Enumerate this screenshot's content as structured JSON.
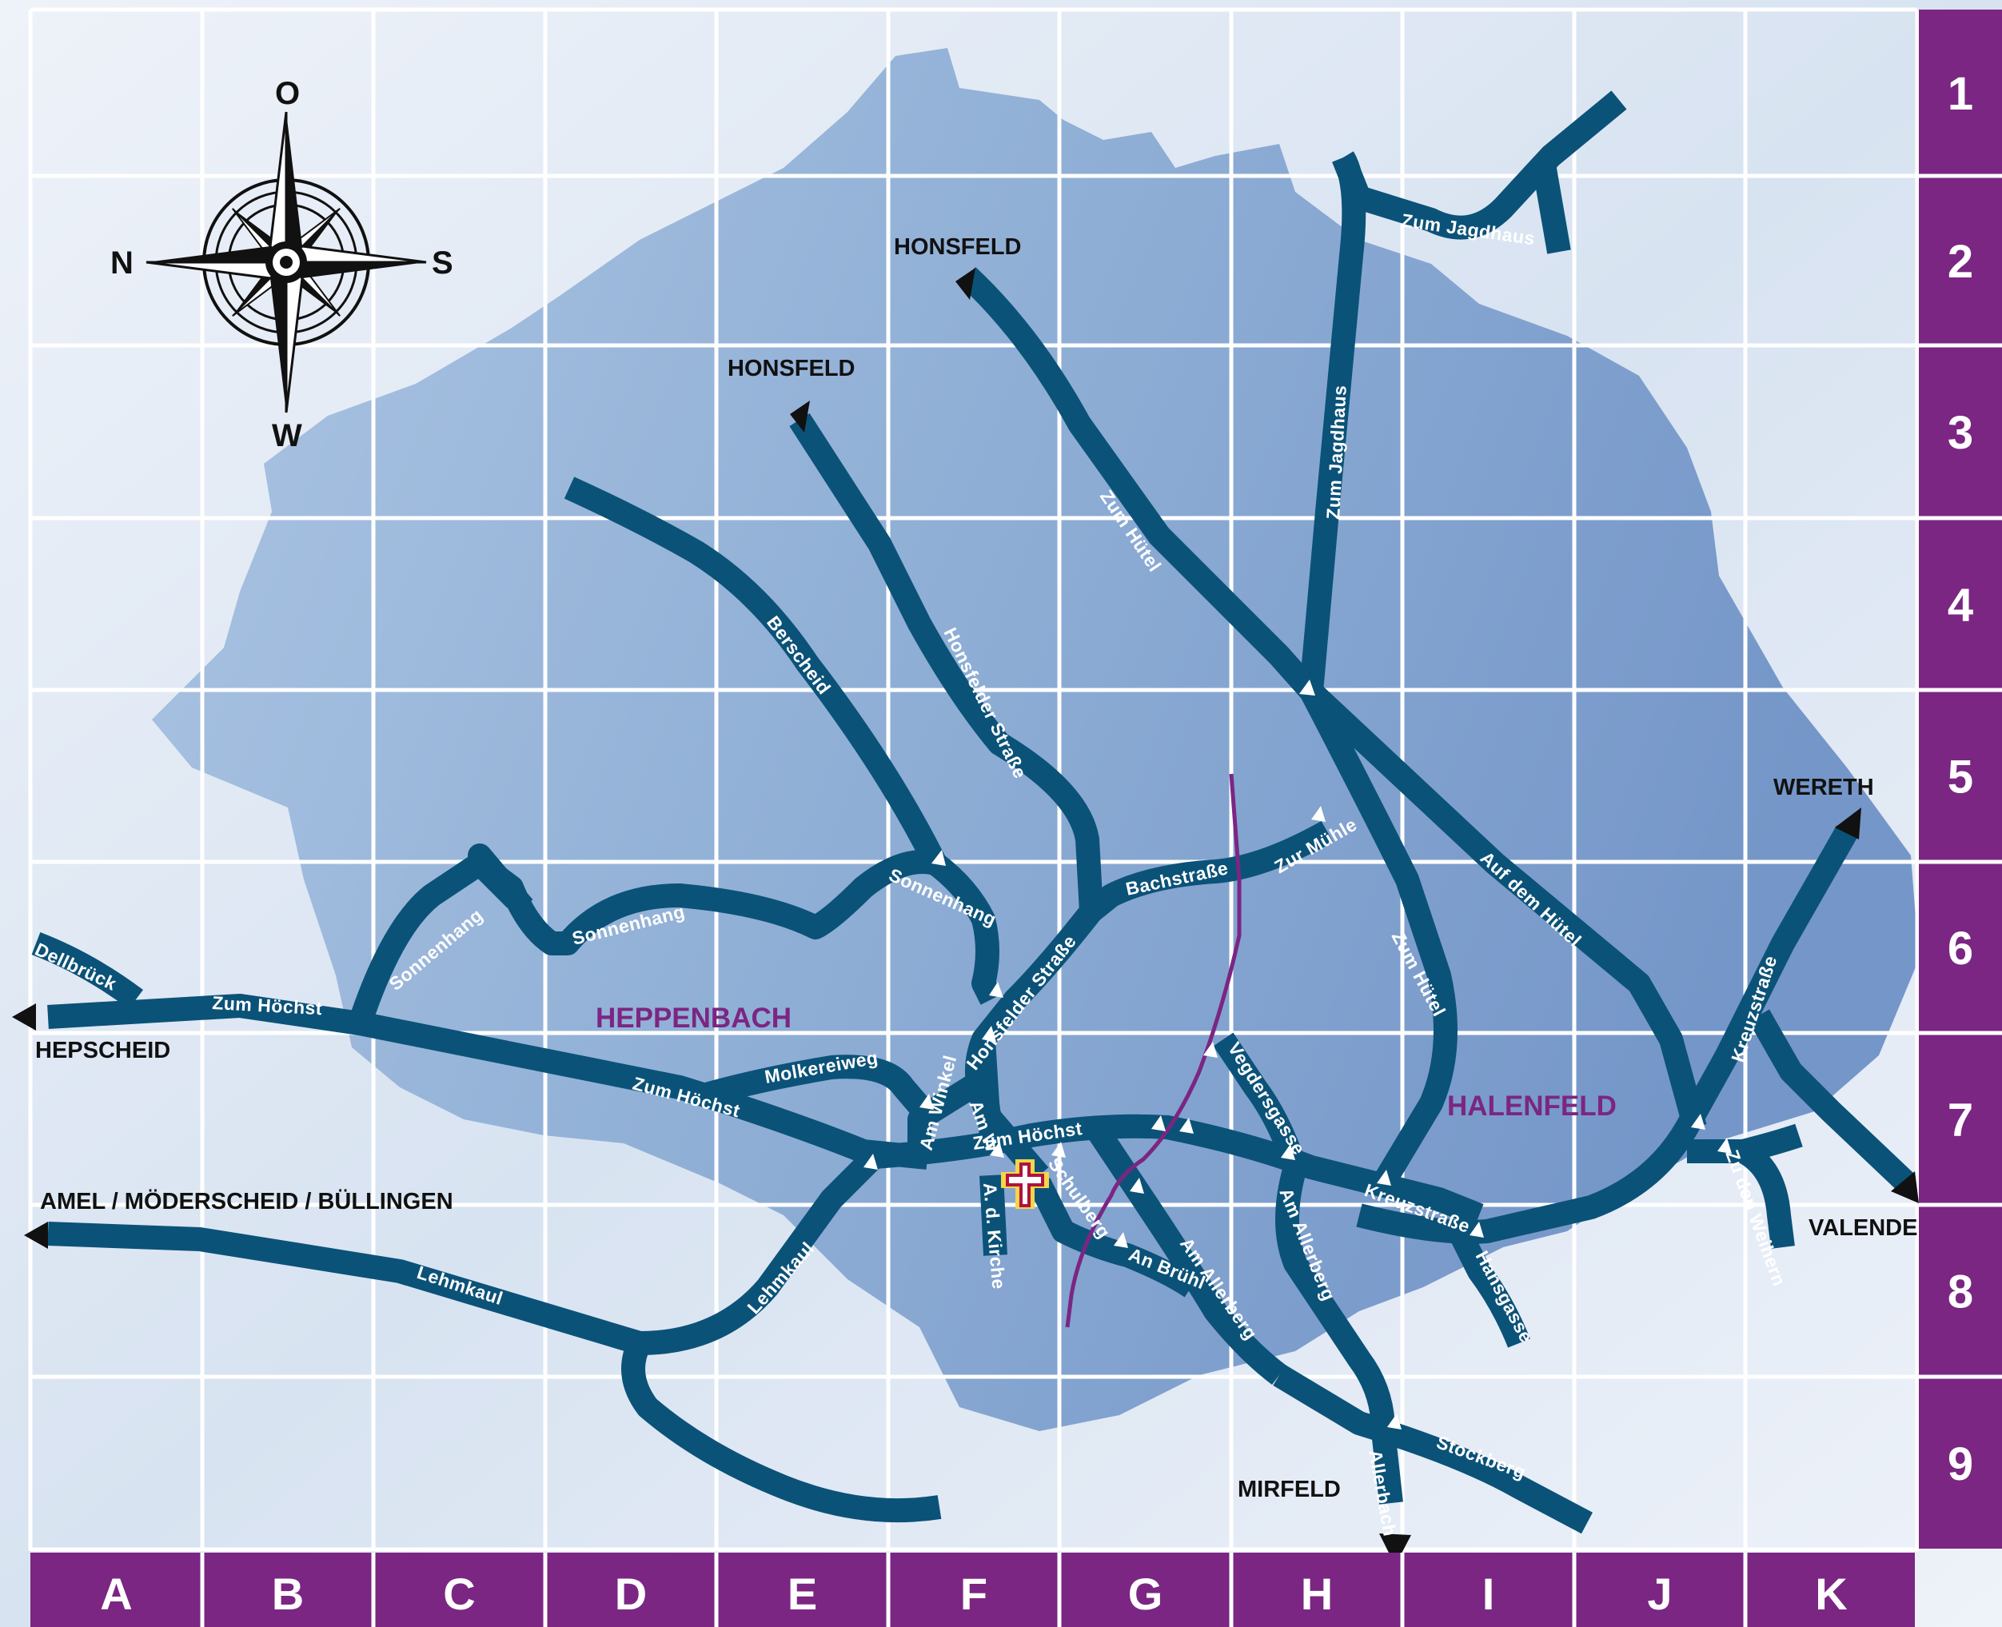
{
  "colors": {
    "road": "#0b5278",
    "grid_band": "#7b2683",
    "village_label": "#7b2683",
    "boundary": "#7b2683",
    "area_fill": "#8fb0d6",
    "background": "#e6ecf6"
  },
  "grid": {
    "columns": [
      "A",
      "B",
      "C",
      "D",
      "E",
      "F",
      "G",
      "H",
      "I",
      "J",
      "K"
    ],
    "rows": [
      "1",
      "2",
      "3",
      "4",
      "5",
      "6",
      "7",
      "8",
      "9"
    ]
  },
  "compass": {
    "north": "O",
    "west": "N",
    "east": "S",
    "south": "W",
    "icon": "compass-rose-icon"
  },
  "villages": {
    "heppenbach": "HEPPENBACH",
    "halenfeld": "HALENFELD"
  },
  "destinations": {
    "honsfeld_a": "HONSFELD",
    "honsfeld_b": "HONSFELD",
    "hepscheid": "HEPSCHEID",
    "amel": "AMEL / MÖDERSCHEID / BÜLLINGEN",
    "mirfeld": "MIRFELD",
    "wereth": "WERETH",
    "valender": "VALENDER"
  },
  "streets": {
    "zum_jagdhaus_1": "Zum Jagdhaus",
    "zum_jagdhaus_2": "Zum Jagdhaus",
    "zum_huetel_1": "Zum Hütel",
    "zum_huetel_2": "Zum Hütel",
    "berscheid": "Berscheid",
    "honsfelder_1": "Honsfelder Straße",
    "honsfelder_2": "Honsfelder Straße",
    "auf_dem_huetel": "Auf dem Hütel",
    "kreuzstrasse_1": "Kreuzstraße",
    "kreuzstrasse_2": "Kreuzstraße",
    "zur_muehle": "Zur Mühle",
    "bachstrasse": "Bachstraße",
    "sonnenhang_1": "Sonnenhang",
    "sonnenhang_2": "Sonnenhang",
    "sonnenhang_3": "Sonnenhang",
    "dellbrueck": "Dellbrück",
    "zum_hoechst_1": "Zum Höchst",
    "zum_hoechst_2": "Zum Höchst",
    "zum_hoechst_3": "Zum Höchst",
    "molkereiweg": "Molkereiweg",
    "am_winkel_1": "Am Winkel",
    "am_winkel_2": "Am W",
    "a_d_kirche": "A. d. Kirche",
    "schulberg": "Schulberg",
    "an_bruehl": "An Brühl",
    "am_allerberg_1": "Am Allerberg",
    "am_allerberg_2": "Am Allerberg",
    "vegdersgasse": "Vegdersgasse",
    "hansgasse": "Hansgasse",
    "zu_den_weihern": "Zu den Weihern",
    "lehmkaul_1": "Lehmkaul",
    "lehmkaul_2": "Lehmkaul",
    "stockberg": "Stockberg",
    "allerbach": "Allerbach"
  },
  "poi": {
    "church": "church-cross-icon"
  }
}
